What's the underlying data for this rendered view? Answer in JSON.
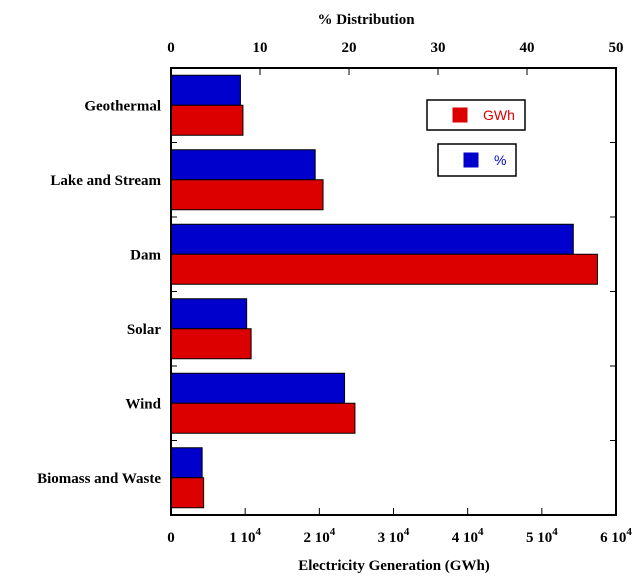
{
  "chart_data": {
    "type": "bar",
    "orientation": "horizontal",
    "categories": [
      "Geothermal",
      "Lake and Stream",
      "Dam",
      "Solar",
      "Wind",
      "Biomass and Waste"
    ],
    "series": [
      {
        "name": "%",
        "axis": "top",
        "color": "#0000cc",
        "values": [
          7.8,
          16.2,
          45.2,
          8.5,
          19.5,
          3.5
        ]
      },
      {
        "name": "GWh",
        "axis": "bottom",
        "color": "#dd0000",
        "values": [
          9700,
          20500,
          57500,
          10800,
          24800,
          4400
        ]
      }
    ],
    "top_axis": {
      "title": "% Distribution",
      "range": [
        0,
        50
      ],
      "ticks": [
        "0",
        "10",
        "20",
        "30",
        "40",
        "50"
      ]
    },
    "bottom_axis": {
      "title": "Electricity Generation (GWh)",
      "range": [
        0,
        60000
      ],
      "tick_values": [
        0,
        10000,
        20000,
        30000,
        40000,
        50000,
        60000
      ],
      "ticks": [
        {
          "mantissa": "0",
          "exp": ""
        },
        {
          "mantissa": "1 10",
          "exp": "4"
        },
        {
          "mantissa": "2 10",
          "exp": "4"
        },
        {
          "mantissa": "3 10",
          "exp": "4"
        },
        {
          "mantissa": "4 10",
          "exp": "4"
        },
        {
          "mantissa": "5 10",
          "exp": "4"
        },
        {
          "mantissa": "6 10",
          "exp": "4"
        }
      ]
    },
    "legend": [
      {
        "label": "GWh",
        "color": "#dd0000"
      },
      {
        "label": "%",
        "color": "#0000cc"
      }
    ],
    "legend_position": "top-right",
    "grid": false
  }
}
